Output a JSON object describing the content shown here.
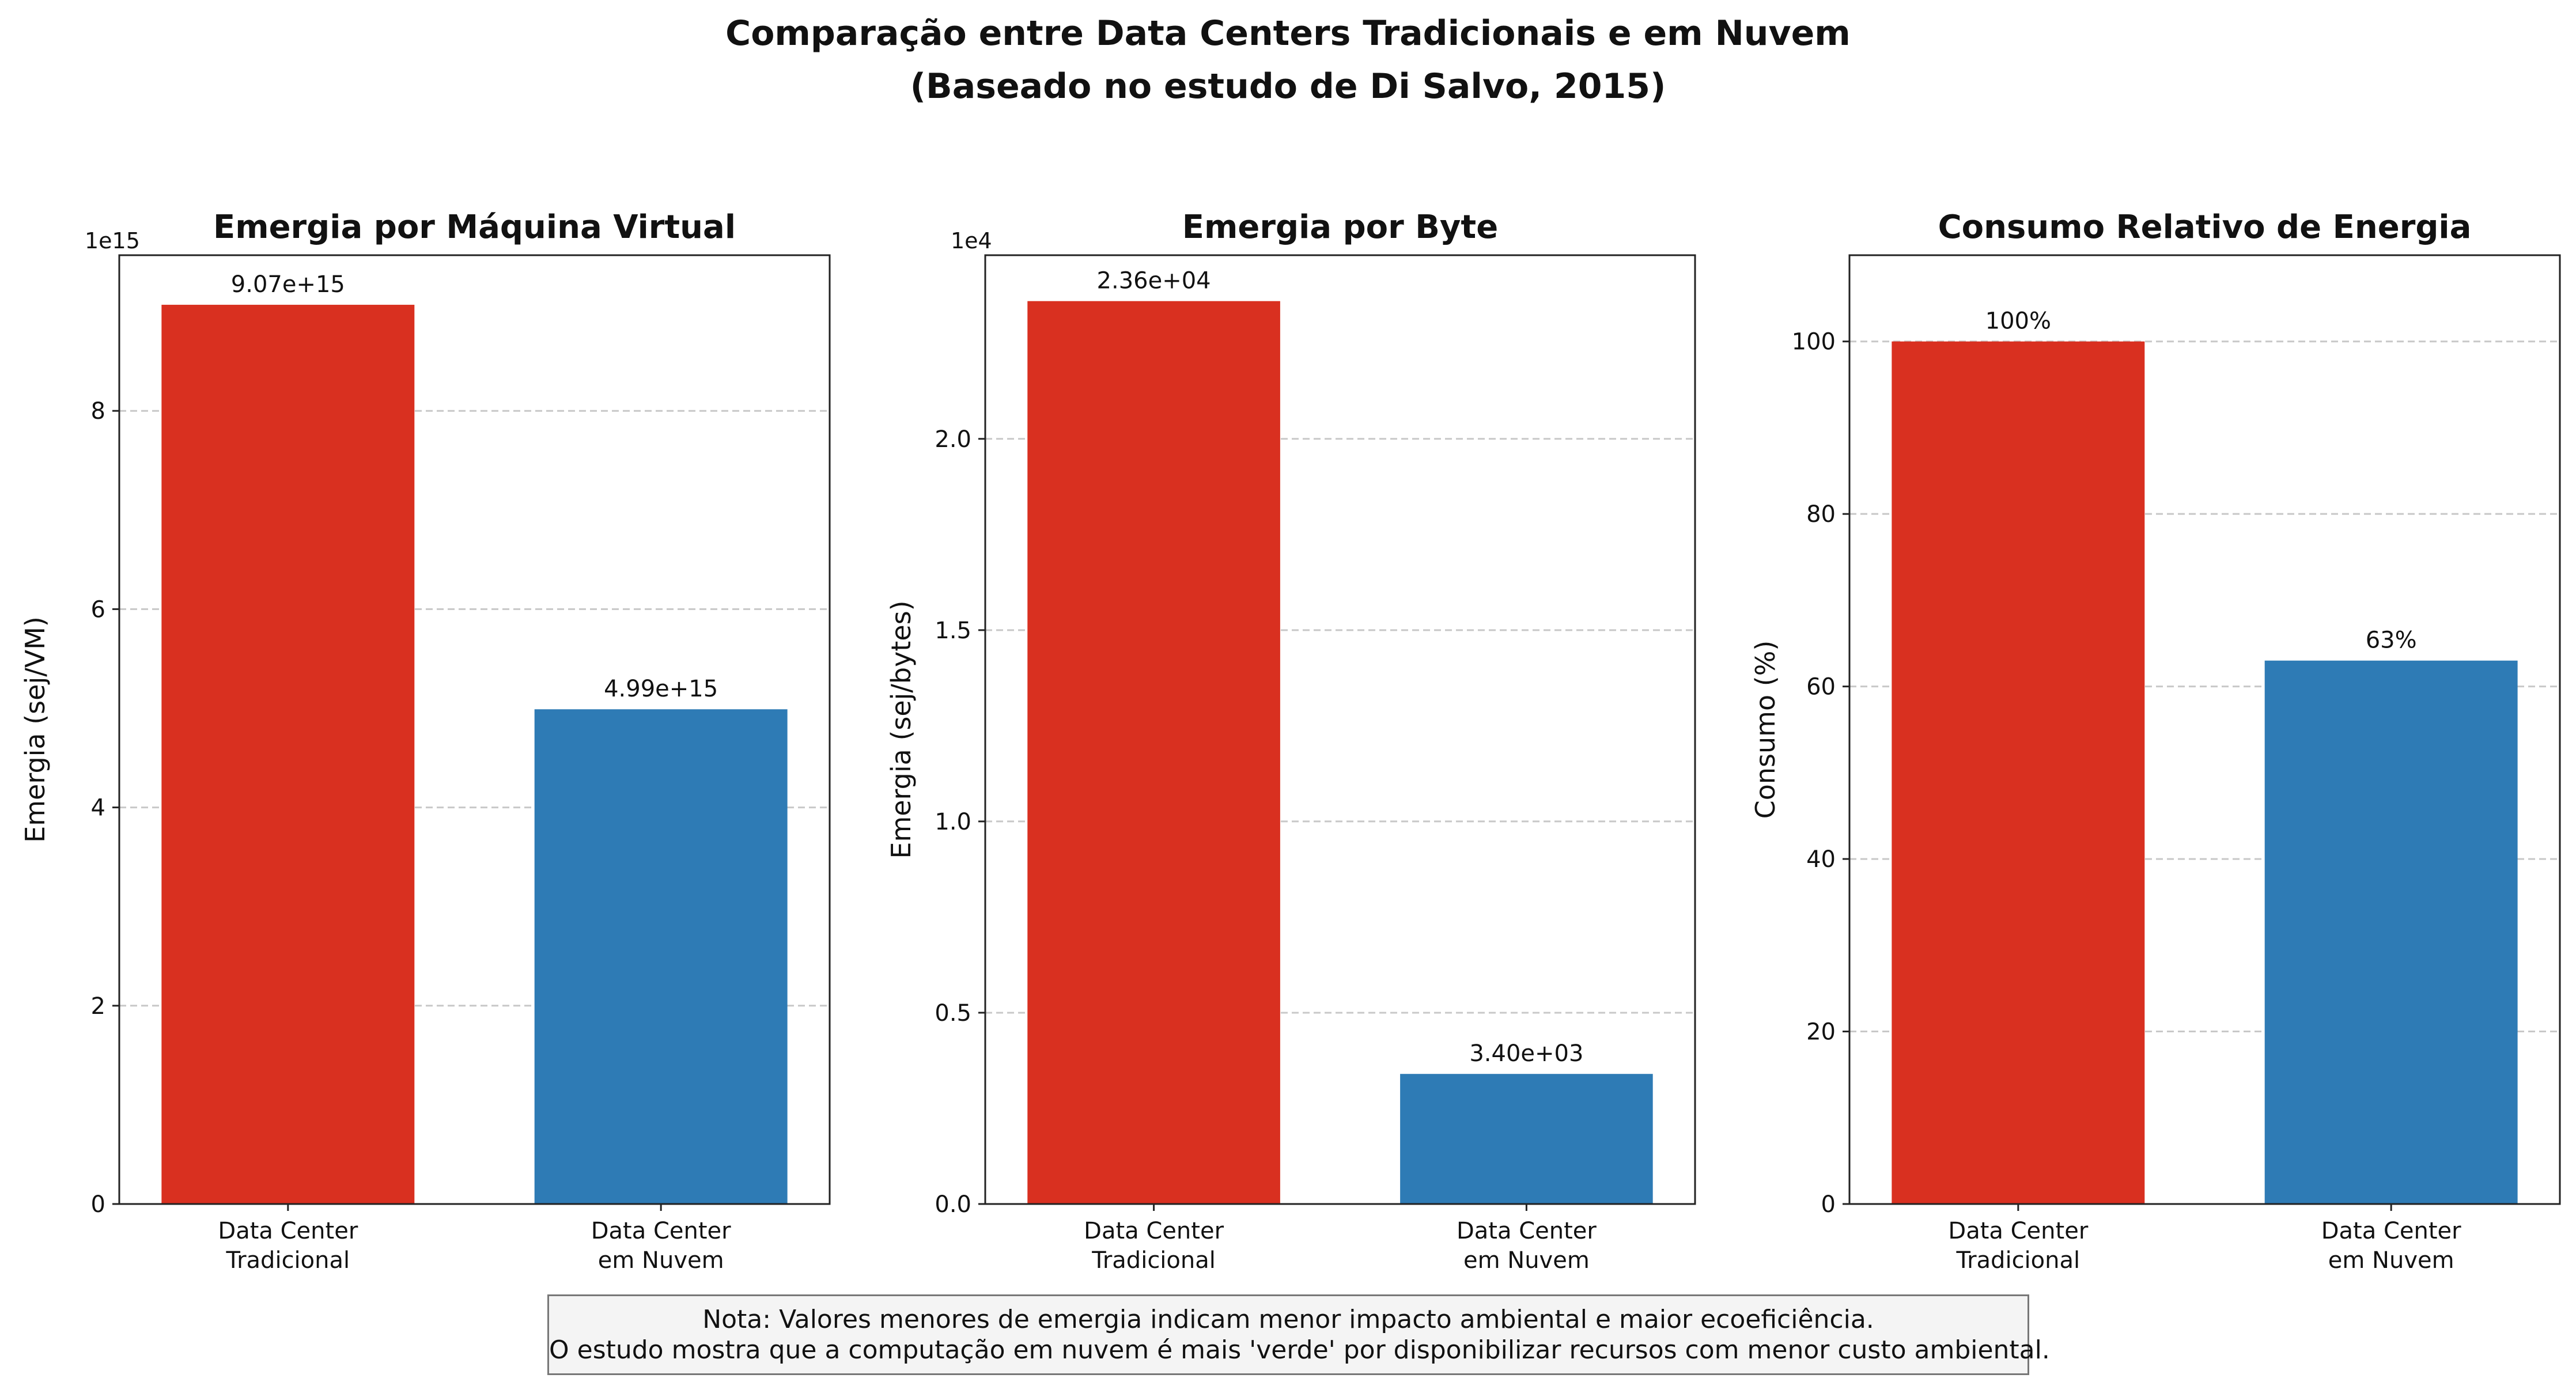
{
  "suptitle": {
    "line1": "Comparação entre Data Centers Tradicionais e em Nuvem",
    "line2": "(Baseado no estudo de Di Salvo, 2015)"
  },
  "note": {
    "line1": "Nota: Valores menores de emergia indicam menor impacto ambiental e maior ecoeficiência.",
    "line2": "O estudo mostra que a computação em nuvem é mais 'verde' por disponibilizar recursos com menor custo ambiental."
  },
  "colors": {
    "tradicional": "#d93020",
    "nuvem": "#2e7bb5",
    "grid": "#c8c8c8"
  },
  "chart_data": [
    {
      "type": "bar",
      "title": "Emergia por Máquina Virtual",
      "ylabel": "Emergia (sej/VM)",
      "offset_label": "1e15",
      "categories": [
        [
          "Data Center",
          "Tradicional"
        ],
        [
          "Data Center",
          "em Nuvem"
        ]
      ],
      "values": [
        9070000000000000.0,
        4990000000000000.0
      ],
      "value_labels": [
        "9.07e+15",
        "4.99e+15"
      ],
      "ylim": [
        0,
        9570000000000000.0
      ],
      "ticks": [
        0,
        2000000000000000.0,
        4000000000000000.0,
        6000000000000000.0,
        8000000000000000.0
      ],
      "tick_labels": [
        "0",
        "2",
        "4",
        "6",
        "8"
      ],
      "grid": "y-dashed"
    },
    {
      "type": "bar",
      "title": "Emergia por Byte",
      "ylabel": "Emergia (sej/bytes)",
      "offset_label": "1e4",
      "categories": [
        [
          "Data Center",
          "Tradicional"
        ],
        [
          "Data Center",
          "em Nuvem"
        ]
      ],
      "values": [
        23600,
        3400
      ],
      "value_labels": [
        "2.36e+04",
        "3.40e+03"
      ],
      "ylim": [
        0,
        24800
      ],
      "ticks": [
        0,
        5000,
        10000,
        15000,
        20000
      ],
      "tick_labels": [
        "0.0",
        "0.5",
        "1.0",
        "1.5",
        "2.0"
      ],
      "grid": "y-dashed"
    },
    {
      "type": "bar",
      "title": "Consumo Relativo de Energia",
      "ylabel": "Consumo (%)",
      "offset_label": "",
      "categories": [
        [
          "Data Center",
          "Tradicional"
        ],
        [
          "Data Center",
          "em Nuvem"
        ]
      ],
      "values": [
        100,
        63
      ],
      "value_labels": [
        "100%",
        "63%"
      ],
      "ylim": [
        0,
        110
      ],
      "ticks": [
        0,
        20,
        40,
        60,
        80,
        100
      ],
      "tick_labels": [
        "0",
        "20",
        "40",
        "60",
        "80",
        "100"
      ],
      "grid": "y-dashed"
    }
  ]
}
